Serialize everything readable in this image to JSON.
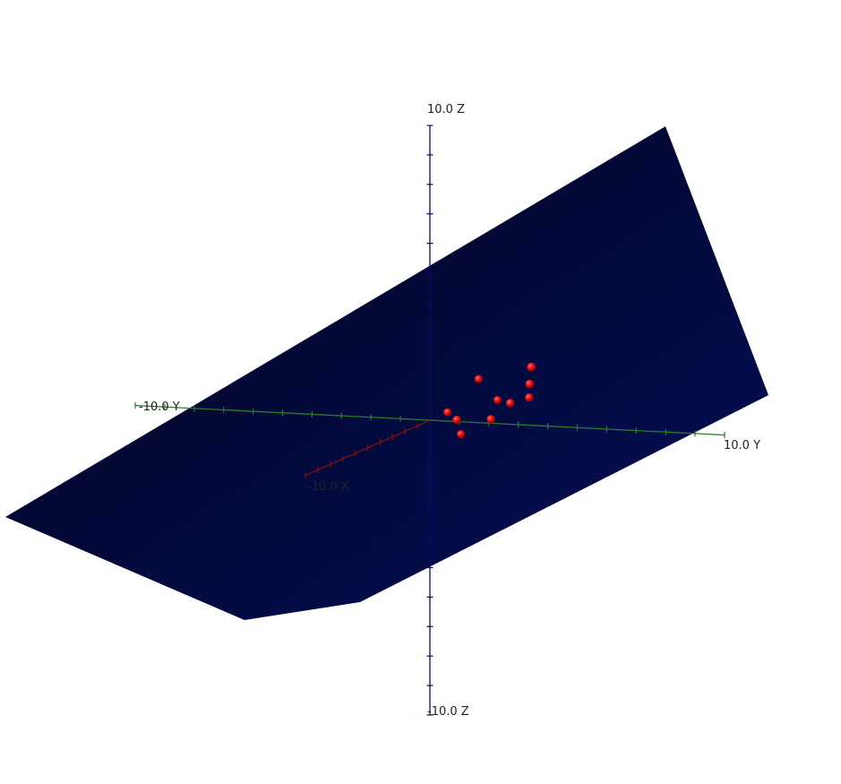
{
  "chart_data": {
    "type": "scatter",
    "dimensions": 3,
    "axes": {
      "x": {
        "range": [
          -10,
          10
        ],
        "labels": {
          "min": "-10.0 X"
        }
      },
      "y": {
        "range": [
          -10,
          10
        ],
        "labels": {
          "min": "-10.0 Y",
          "max": "10.0 Y"
        }
      },
      "z": {
        "range": [
          -10,
          10
        ],
        "labels": {
          "min": "-10.0 Z",
          "max": "10.0 Z"
        }
      }
    },
    "plane": {
      "color_dark": "#02021a",
      "color_light": "#04105a"
    },
    "points": [
      {
        "x": 0.0,
        "y": 0.6,
        "z": 0.3
      },
      {
        "x": 0.2,
        "y": 1.0,
        "z": 0.1
      },
      {
        "x": 0.1,
        "y": 1.1,
        "z": -0.4
      },
      {
        "x": 0.3,
        "y": 2.2,
        "z": 0.2
      },
      {
        "x": 0.0,
        "y": 2.3,
        "z": 0.8
      },
      {
        "x": 0.4,
        "y": 2.9,
        "z": 0.8
      },
      {
        "x": 0.5,
        "y": 3.6,
        "z": 1.5
      },
      {
        "x": 0.6,
        "y": 3.7,
        "z": 2.1
      },
      {
        "x": 0.3,
        "y": 3.5,
        "z": 1.0
      },
      {
        "x": 0.1,
        "y": 1.7,
        "z": 1.5
      }
    ],
    "colors": {
      "x_axis": "#7a1010",
      "y_axis": "#2a7a2a",
      "z_axis": "#0a0a6e",
      "point": "#e01010"
    }
  }
}
